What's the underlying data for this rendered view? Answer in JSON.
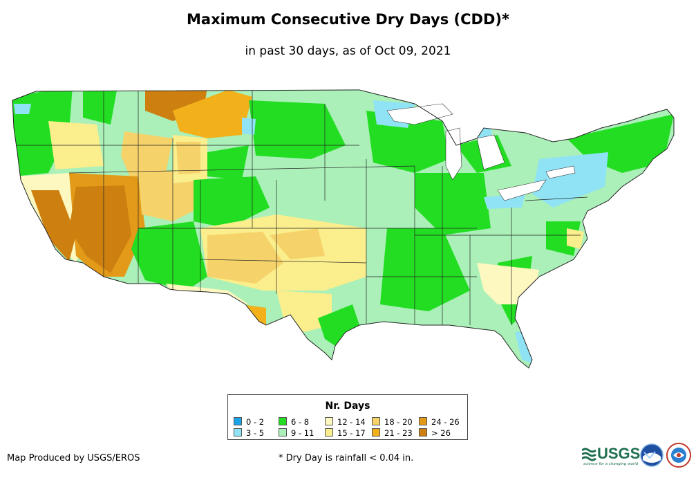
{
  "title": "Maximum Consecutive Dry Days (CDD)*",
  "subtitle": "in past 30 days, as of Oct 09, 2021",
  "legend": {
    "title": "Nr. Days",
    "items": [
      {
        "label": "0 - 2",
        "color": "#1aa3e8"
      },
      {
        "label": "3 - 5",
        "color": "#8fe3f5"
      },
      {
        "label": "6 - 8",
        "color": "#22dd22"
      },
      {
        "label": "9 - 11",
        "color": "#aaf0b8"
      },
      {
        "label": "12 - 14",
        "color": "#fdf8c0"
      },
      {
        "label": "15 - 17",
        "color": "#fbee8c"
      },
      {
        "label": "18 - 20",
        "color": "#f5d36a"
      },
      {
        "label": "21 - 23",
        "color": "#f2b01a"
      },
      {
        "label": "24 - 26",
        "color": "#e39a18"
      },
      {
        "label": "> 26",
        "color": "#cd8010"
      }
    ]
  },
  "credit": "Map Produced by USGS/EROS",
  "footnote": "* Dry Day is rainfall < 0.04 in.",
  "logos": {
    "usgs": "USGS",
    "usgs_tagline": "science for a changing world",
    "noaa": "NOAA",
    "nws": "NATIONAL WEATHER SERVICE"
  }
}
